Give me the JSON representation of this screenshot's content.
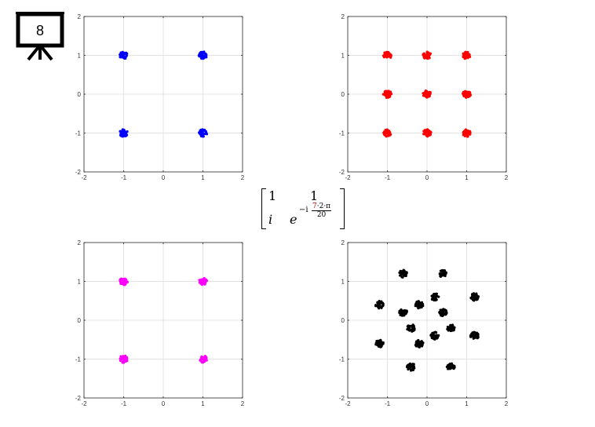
{
  "slide": {
    "number": "8",
    "icon": "presentation-board-icon"
  },
  "matrix": {
    "r1c1": "1",
    "r1c2": "1",
    "r2c1": "i",
    "r2c2_base": "e",
    "r2c2_exp_prefix": "−i",
    "r2c2_num_highlight": "7",
    "r2c2_num_rest": "·2·π",
    "r2c2_den": "20",
    "highlight_color": "#c00000"
  },
  "chart_data": [
    {
      "type": "scatter",
      "name": "",
      "color": "#0000ff",
      "xlim": [
        -2,
        2
      ],
      "ylim": [
        -2,
        2
      ],
      "xticks": [
        "-2",
        "-1",
        "0",
        "1",
        "2"
      ],
      "yticks": [
        "2",
        "1",
        "0",
        "-1",
        "-2"
      ],
      "grid": true,
      "clusters": [
        [
          -1,
          1
        ],
        [
          1,
          1
        ],
        [
          -1,
          -1
        ],
        [
          1,
          -1
        ]
      ]
    },
    {
      "type": "scatter",
      "name": "",
      "color": "#ff0000",
      "xlim": [
        -2,
        2
      ],
      "ylim": [
        -2,
        2
      ],
      "xticks": [
        "-2",
        "-1",
        "0",
        "1",
        "2"
      ],
      "yticks": [
        "2",
        "1",
        "0",
        "-1",
        "-2"
      ],
      "grid": true,
      "clusters": [
        [
          -1,
          1
        ],
        [
          0,
          1
        ],
        [
          1,
          1
        ],
        [
          -1,
          0
        ],
        [
          0,
          0
        ],
        [
          1,
          0
        ],
        [
          -1,
          -1
        ],
        [
          0,
          -1
        ],
        [
          1,
          -1
        ]
      ]
    },
    {
      "type": "scatter",
      "name": "",
      "color": "#ff00ff",
      "xlim": [
        -2,
        2
      ],
      "ylim": [
        -2,
        2
      ],
      "xticks": [
        "-2",
        "-1",
        "0",
        "1",
        "2"
      ],
      "yticks": [
        "2",
        "1",
        "0",
        "-1",
        "-2"
      ],
      "grid": true,
      "clusters": [
        [
          -1,
          1
        ],
        [
          1,
          1
        ],
        [
          -1,
          -1
        ],
        [
          1,
          -1
        ]
      ]
    },
    {
      "type": "scatter",
      "name": "",
      "color": "#000000",
      "xlim": [
        -2,
        2
      ],
      "ylim": [
        -2,
        2
      ],
      "xticks": [
        "-2",
        "-1",
        "0",
        "1",
        "2"
      ],
      "yticks": [
        "2",
        "1",
        "0",
        "-1",
        "-2"
      ],
      "grid": true,
      "clusters": [
        [
          -0.6,
          1.2
        ],
        [
          0.4,
          1.2
        ],
        [
          0.2,
          0.6
        ],
        [
          1.2,
          0.6
        ],
        [
          -1.2,
          0.4
        ],
        [
          -0.2,
          0.4
        ],
        [
          -0.6,
          0.2
        ],
        [
          0.4,
          0.2
        ],
        [
          -0.4,
          -0.2
        ],
        [
          0.6,
          -0.2
        ],
        [
          0.2,
          -0.4
        ],
        [
          1.2,
          -0.4
        ],
        [
          -1.2,
          -0.6
        ],
        [
          -0.2,
          -0.6
        ],
        [
          -0.4,
          -1.2
        ],
        [
          0.6,
          -1.2
        ]
      ]
    }
  ]
}
